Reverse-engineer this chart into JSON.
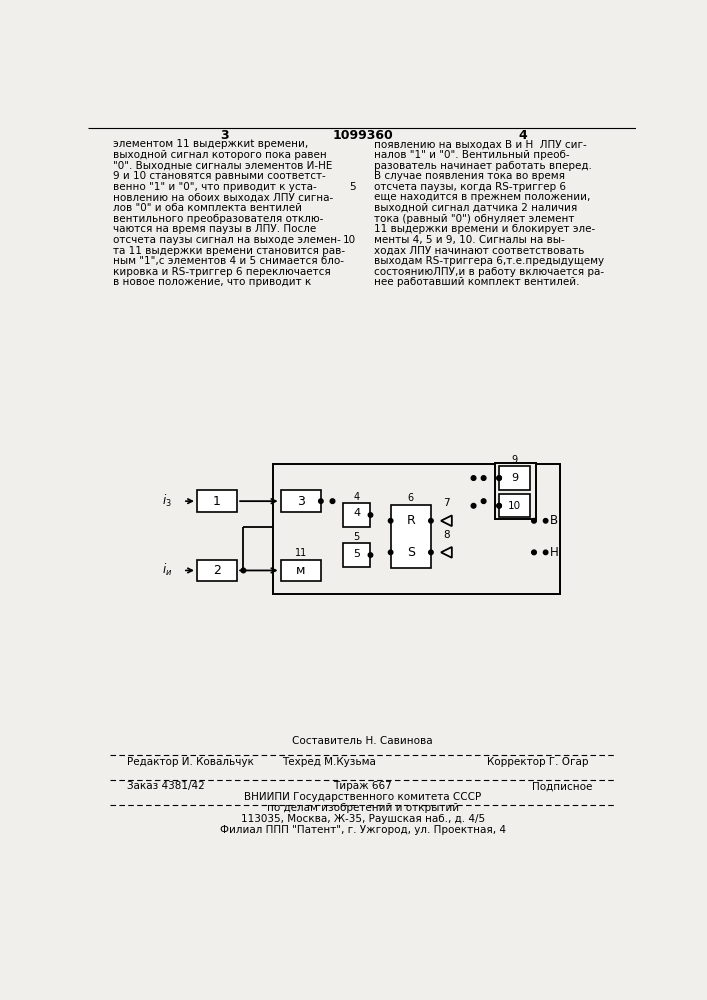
{
  "page_num_left": "3",
  "page_num_center": "1099360",
  "page_num_right": "4",
  "text_left_lines": [
    "элементом 11 выдержкиt времени,",
    "выходной сигнал которого пока равен",
    "\"0\". Выходные сигналы элементов И-НЕ",
    "9 и 10 становятся равными соответст-",
    "венно \"1\" и \"0\", что приводит к уста-",
    "новлению на обоих выходах ЛПУ сигна-",
    "лов \"0\" и оба комплекта вентилей",
    "вентильного преобразователя отклю-",
    "чаются на время паузы в ЛПУ. После",
    "отсчета паузы сигнал на выходе элемен-",
    "та 11 выдержки времени становится рав-",
    "ным \"1\",с элементов 4 и 5 снимается бло-",
    "кировка и RS-триггер 6 переключается",
    "в новое положение, что приводит к"
  ],
  "text_right_lines": [
    "появлению на выходах В и Н  ЛПУ сиг-",
    "налов \"1\" и \"0\". Вентильный преоб-",
    "разователь начинает работать вперед.",
    "В случае появления тока во время",
    "отсчета паузы, когда RS-триггер 6",
    "еще находится в прежнем положении,",
    "выходной сигнал датчика 2 наличия",
    "тока (равный \"0\") обнуляет элемент",
    "11 выдержки времени и блокирует эле-",
    "менты 4, 5 и 9, 10. Сигналы на вы-",
    "ходах ЛПУ начинают соответствовать",
    "выходам RS-триггера 6,т.е.предыдущему",
    "состояниюЛПУ,и в работу включается ра-",
    "нее работавший комплект вентилей."
  ],
  "footer_composer": "Составитель Н. Савинова",
  "footer_editor": "Редактор И. Ковальчук",
  "footer_techred": "Техред М.Кузьма",
  "footer_corrector": "Корректор Г. Огар",
  "footer_order": "Заказ 4381/42",
  "footer_tirazh": "Тираж 667",
  "footer_podp": "Подписное",
  "footer_vniip1": "ВНИИПИ Государственного комитета СССР",
  "footer_vniip2": "по делам изобретений и открытий",
  "footer_addr": "113035, Москва, Ж-35, Раушская наб., д. 4/5",
  "footer_filial": "Филиал ППП \"Патент\", г. Ужгород, ул. Проектная, 4",
  "bg_color": "#f0efeb"
}
